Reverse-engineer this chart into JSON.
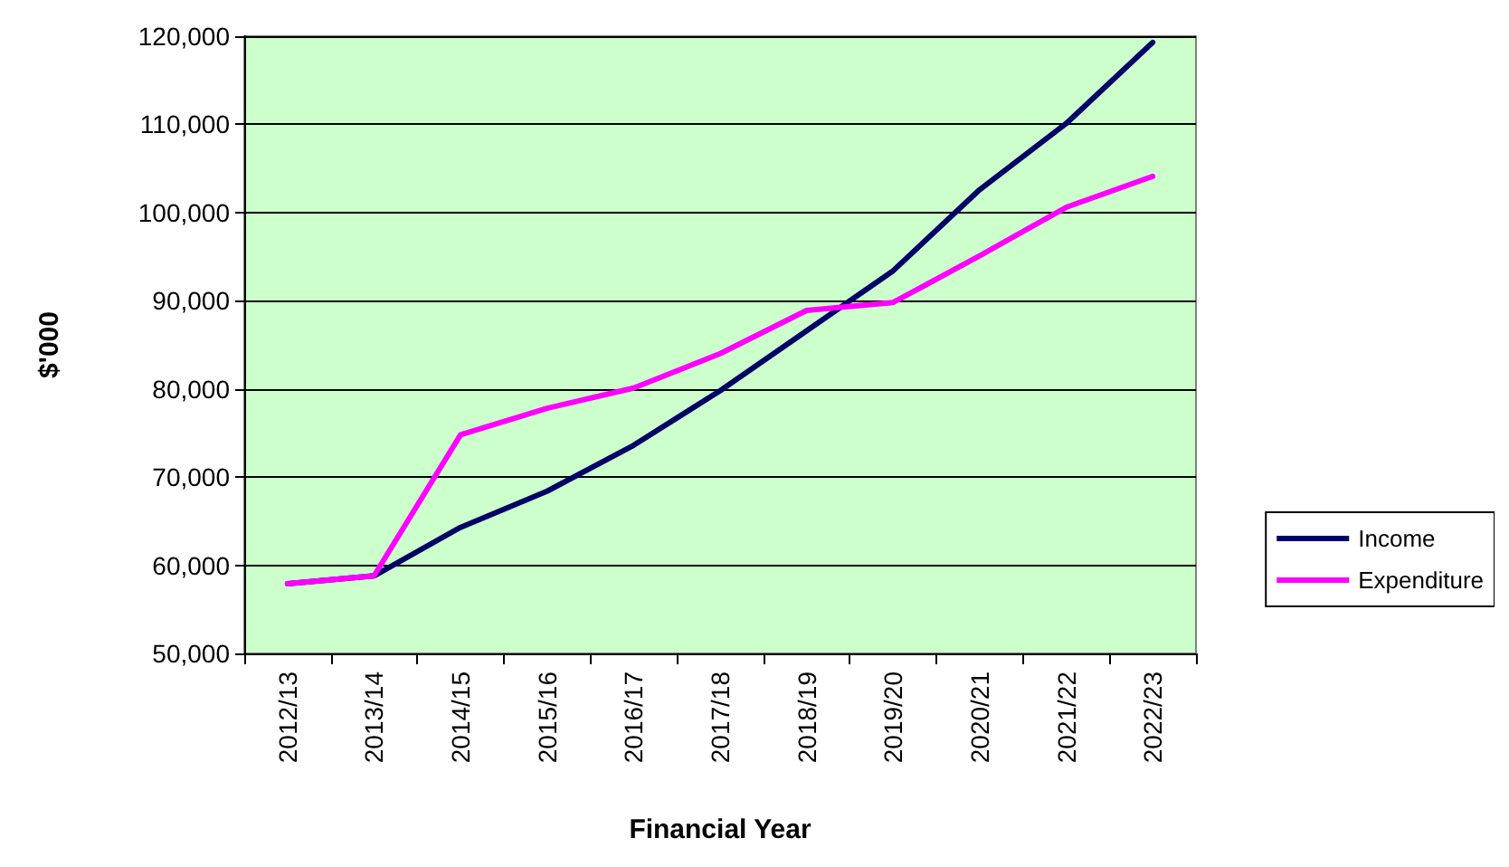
{
  "chart_data": {
    "type": "line",
    "xlabel": "Financial Year",
    "ylabel": "$'000",
    "categories": [
      "2012/13",
      "2013/14",
      "2014/15",
      "2015/16",
      "2016/17",
      "2017/18",
      "2018/19",
      "2019/20",
      "2020/21",
      "2021/22",
      "2022/23"
    ],
    "series": [
      {
        "name": "Income",
        "color": "#000066",
        "values": [
          57900,
          58800,
          64300,
          68400,
          73600,
          79800,
          86600,
          93400,
          102600,
          110100,
          119300
        ]
      },
      {
        "name": "Expenditure",
        "color": "#ff00ff",
        "values": [
          57900,
          58800,
          74800,
          77800,
          80100,
          84000,
          88900,
          89800,
          95100,
          100600,
          104100
        ]
      }
    ],
    "ylim": [
      50000,
      120000
    ],
    "yticks": [
      {
        "value": 50000,
        "label": "50,000"
      },
      {
        "value": 60000,
        "label": "60,000"
      },
      {
        "value": 70000,
        "label": "70,000"
      },
      {
        "value": 80000,
        "label": "80,000"
      },
      {
        "value": 90000,
        "label": "90,000"
      },
      {
        "value": 100000,
        "label": "100,000"
      },
      {
        "value": 110000,
        "label": "110,000"
      },
      {
        "value": 120000,
        "label": "120,000"
      }
    ],
    "grid": "y",
    "legend": "right",
    "marker": "none",
    "line_style": "solid"
  }
}
